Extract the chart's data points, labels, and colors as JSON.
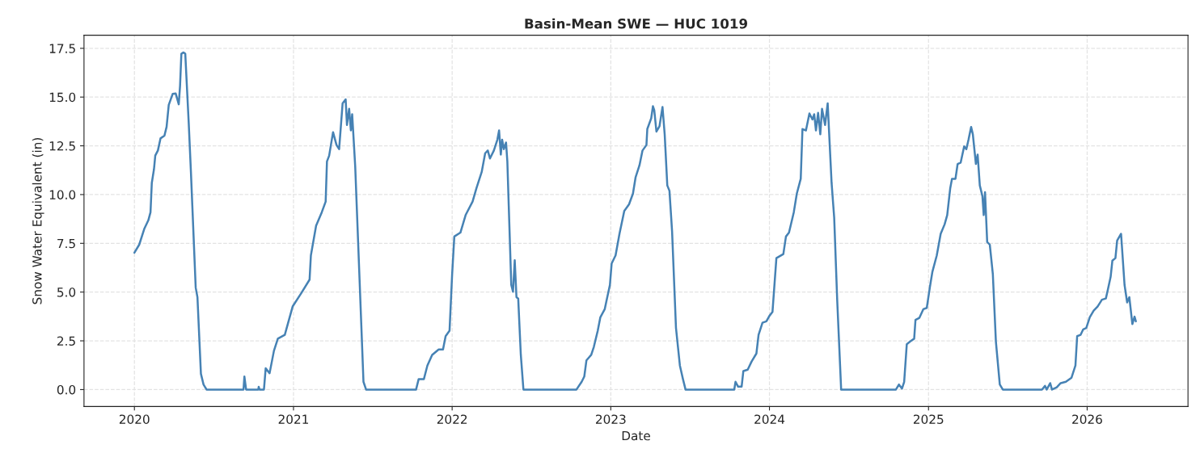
{
  "chart_data": {
    "type": "line",
    "title": "Basin-Mean SWE — HUC 1019",
    "xlabel": "Date",
    "ylabel": "Snow Water Equivalent (in)",
    "xlim": [
      "2019-09-07",
      "2026-08-21"
    ],
    "ylim": [
      -0.87,
      18.17
    ],
    "xticks": [
      {
        "value": "2020-01-01",
        "label": "2020"
      },
      {
        "value": "2021-01-01",
        "label": "2021"
      },
      {
        "value": "2022-01-01",
        "label": "2022"
      },
      {
        "value": "2023-01-01",
        "label": "2023"
      },
      {
        "value": "2024-01-01",
        "label": "2024"
      },
      {
        "value": "2025-01-01",
        "label": "2025"
      },
      {
        "value": "2026-01-01",
        "label": "2026"
      }
    ],
    "yticks": [
      {
        "value": 0,
        "label": "0.0"
      },
      2.5,
      {
        "value": 5,
        "label": "5.0"
      },
      7.5,
      {
        "value": 10,
        "label": "10.0"
      },
      12.5,
      {
        "value": 15,
        "label": "15.0"
      },
      17.5
    ],
    "grid": true,
    "marker": "none",
    "line_style": "solid",
    "series": [
      {
        "color": "#4682b4",
        "x": [
          "2020-01-01",
          "2020-01-12",
          "2020-01-24",
          "2020-02-02",
          "2020-02-07",
          "2020-02-10",
          "2020-02-15",
          "2020-02-18",
          "2020-02-24",
          "2020-03-01",
          "2020-03-10",
          "2020-03-15",
          "2020-03-20",
          "2020-03-29",
          "2020-04-05",
          "2020-04-12",
          "2020-04-15",
          "2020-04-18",
          "2020-04-23",
          "2020-04-27",
          "2020-05-05",
          "2020-05-10",
          "2020-05-21",
          "2020-05-25",
          "2020-06-02",
          "2020-06-08",
          "2020-06-15",
          "2020-09-08",
          "2020-09-10",
          "2020-09-14",
          "2020-10-12",
          "2020-10-13",
          "2020-10-15",
          "2020-10-25",
          "2020-10-29",
          "2020-11-07",
          "2020-11-17",
          "2020-11-26",
          "2020-12-12",
          "2020-12-30",
          "2021-01-19",
          "2021-02-07",
          "2021-02-10",
          "2021-02-22",
          "2021-03-07",
          "2021-03-16",
          "2021-03-19",
          "2021-03-24",
          "2021-04-02",
          "2021-04-10",
          "2021-04-16",
          "2021-04-24",
          "2021-05-01",
          "2021-05-04",
          "2021-05-09",
          "2021-05-13",
          "2021-05-16",
          "2021-05-23",
          "2021-06-02",
          "2021-06-11",
          "2021-06-17",
          "2021-10-10",
          "2021-10-16",
          "2021-10-28",
          "2021-11-05",
          "2021-11-16",
          "2021-12-01",
          "2021-12-11",
          "2021-12-17",
          "2021-12-26",
          "2022-01-01",
          "2022-01-06",
          "2022-01-20",
          "2022-02-01",
          "2022-02-17",
          "2022-02-26",
          "2022-03-10",
          "2022-03-18",
          "2022-03-24",
          "2022-03-29",
          "2022-04-07",
          "2022-04-15",
          "2022-04-19",
          "2022-04-23",
          "2022-04-26",
          "2022-04-30",
          "2022-05-05",
          "2022-05-08",
          "2022-05-17",
          "2022-05-21",
          "2022-05-25",
          "2022-05-29",
          "2022-06-02",
          "2022-06-08",
          "2022-06-14",
          "2022-10-14",
          "2022-10-26",
          "2022-11-01",
          "2022-11-06",
          "2022-11-17",
          "2022-11-23",
          "2022-12-02",
          "2022-12-08",
          "2022-12-18",
          "2022-12-22",
          "2022-12-30",
          "2023-01-03",
          "2023-01-12",
          "2023-01-21",
          "2023-02-01",
          "2023-02-12",
          "2023-02-21",
          "2023-02-27",
          "2023-03-08",
          "2023-03-15",
          "2023-03-24",
          "2023-03-26",
          "2023-04-04",
          "2023-04-08",
          "2023-04-11",
          "2023-04-16",
          "2023-04-23",
          "2023-04-30",
          "2023-05-05",
          "2023-05-11",
          "2023-05-16",
          "2023-05-22",
          "2023-05-31",
          "2023-06-09",
          "2023-06-16",
          "2023-06-22",
          "2023-10-12",
          "2023-10-15",
          "2023-10-21",
          "2023-10-29",
          "2023-11-02",
          "2023-11-12",
          "2023-11-21",
          "2023-12-02",
          "2023-12-07",
          "2023-12-16",
          "2023-12-25",
          "2024-01-01",
          "2024-01-08",
          "2024-01-17",
          "2024-02-02",
          "2024-02-08",
          "2024-02-15",
          "2024-02-26",
          "2024-03-04",
          "2024-03-13",
          "2024-03-17",
          "2024-03-25",
          "2024-04-02",
          "2024-04-09",
          "2024-04-13",
          "2024-04-17",
          "2024-04-22",
          "2024-04-27",
          "2024-05-01",
          "2024-05-08",
          "2024-05-14",
          "2024-05-23",
          "2024-05-29",
          "2024-06-05",
          "2024-06-14",
          "2024-10-18",
          "2024-10-25",
          "2024-11-01",
          "2024-11-06",
          "2024-11-12",
          "2024-11-20",
          "2024-11-29",
          "2024-12-02",
          "2024-12-11",
          "2024-12-20",
          "2024-12-28",
          "2025-01-04",
          "2025-01-10",
          "2025-01-20",
          "2025-01-29",
          "2025-02-07",
          "2025-02-13",
          "2025-02-20",
          "2025-02-24",
          "2025-03-04",
          "2025-03-09",
          "2025-03-16",
          "2025-03-24",
          "2025-03-29",
          "2025-04-03",
          "2025-04-09",
          "2025-04-13",
          "2025-04-20",
          "2025-04-24",
          "2025-04-29",
          "2025-05-05",
          "2025-05-08",
          "2025-05-11",
          "2025-05-16",
          "2025-05-22",
          "2025-05-29",
          "2025-06-05",
          "2025-06-14",
          "2025-06-21",
          "2025-09-19",
          "2025-09-26",
          "2025-09-30",
          "2025-10-08",
          "2025-10-12",
          "2025-10-23",
          "2025-11-01",
          "2025-11-13",
          "2025-11-26",
          "2025-12-05",
          "2025-12-09",
          "2025-12-17",
          "2025-12-23",
          "2025-12-30",
          "2026-01-07",
          "2026-01-16",
          "2026-01-25",
          "2026-02-04",
          "2026-02-13",
          "2026-02-18",
          "2026-02-24",
          "2026-02-28",
          "2026-03-07",
          "2026-03-11",
          "2026-03-20",
          "2026-03-28",
          "2026-04-03",
          "2026-04-08",
          "2026-04-15",
          "2026-04-20",
          "2026-04-23"
        ],
        "values": [
          7.02,
          7.43,
          8.26,
          8.68,
          9.09,
          10.6,
          11.3,
          12.0,
          12.26,
          12.88,
          13.02,
          13.47,
          14.6,
          15.16,
          15.18,
          14.63,
          15.57,
          17.22,
          17.29,
          17.22,
          13.64,
          11.16,
          5.23,
          4.74,
          0.81,
          0.26,
          0,
          0,
          0.67,
          0,
          0,
          0.14,
          0,
          0,
          1.09,
          0.84,
          1.99,
          2.61,
          2.81,
          4.26,
          4.95,
          5.64,
          6.88,
          8.4,
          9.09,
          9.64,
          11.7,
          11.99,
          13.2,
          12.54,
          12.33,
          14.68,
          14.88,
          13.57,
          14.4,
          13.29,
          14.12,
          11.43,
          5.64,
          0.4,
          0,
          0,
          0.54,
          0.54,
          1.23,
          1.78,
          2.06,
          2.06,
          2.74,
          3.02,
          5.92,
          7.85,
          8.05,
          8.95,
          9.64,
          10.33,
          11.16,
          12.12,
          12.26,
          11.85,
          12.26,
          12.81,
          13.29,
          12.05,
          12.81,
          12.33,
          12.67,
          11.7,
          5.37,
          5.02,
          6.63,
          4.74,
          4.67,
          1.78,
          0,
          0,
          0.4,
          0.67,
          1.5,
          1.78,
          2.19,
          3.02,
          3.71,
          4.12,
          4.54,
          5.37,
          6.47,
          6.88,
          7.99,
          9.16,
          9.5,
          10.05,
          10.88,
          11.5,
          12.26,
          12.54,
          13.36,
          13.91,
          14.53,
          14.33,
          13.23,
          13.5,
          14.49,
          13.09,
          10.47,
          10.19,
          8.12,
          3.16,
          1.23,
          0.54,
          0,
          0,
          0.4,
          0.15,
          0.15,
          0.95,
          1.02,
          1.44,
          1.85,
          2.81,
          3.43,
          3.5,
          3.78,
          3.98,
          6.74,
          6.95,
          7.85,
          8.05,
          9.09,
          10.05,
          10.81,
          13.36,
          13.29,
          14.16,
          13.85,
          14.12,
          13.29,
          14.19,
          13.09,
          14.4,
          13.57,
          14.68,
          10.6,
          8.81,
          4.54,
          0,
          0,
          0.26,
          0.05,
          0.4,
          2.33,
          2.47,
          2.61,
          3.57,
          3.68,
          4.12,
          4.19,
          5.23,
          6.05,
          6.88,
          7.99,
          8.47,
          8.95,
          10.33,
          10.81,
          10.81,
          11.57,
          11.64,
          12.47,
          12.33,
          12.81,
          13.47,
          13.09,
          11.57,
          12.05,
          10.47,
          9.92,
          8.95,
          10.12,
          7.57,
          7.43,
          5.92,
          2.47,
          0.26,
          0,
          0,
          0.19,
          0,
          0.33,
          0,
          0.12,
          0.33,
          0.4,
          0.61,
          1.23,
          2.74,
          2.81,
          3.09,
          3.16,
          3.71,
          4.05,
          4.26,
          4.61,
          4.67,
          5.16,
          5.78,
          6.61,
          6.74,
          7.64,
          7.99,
          5.37,
          4.47,
          4.74,
          3.36,
          3.74,
          3.5
        ]
      }
    ]
  }
}
